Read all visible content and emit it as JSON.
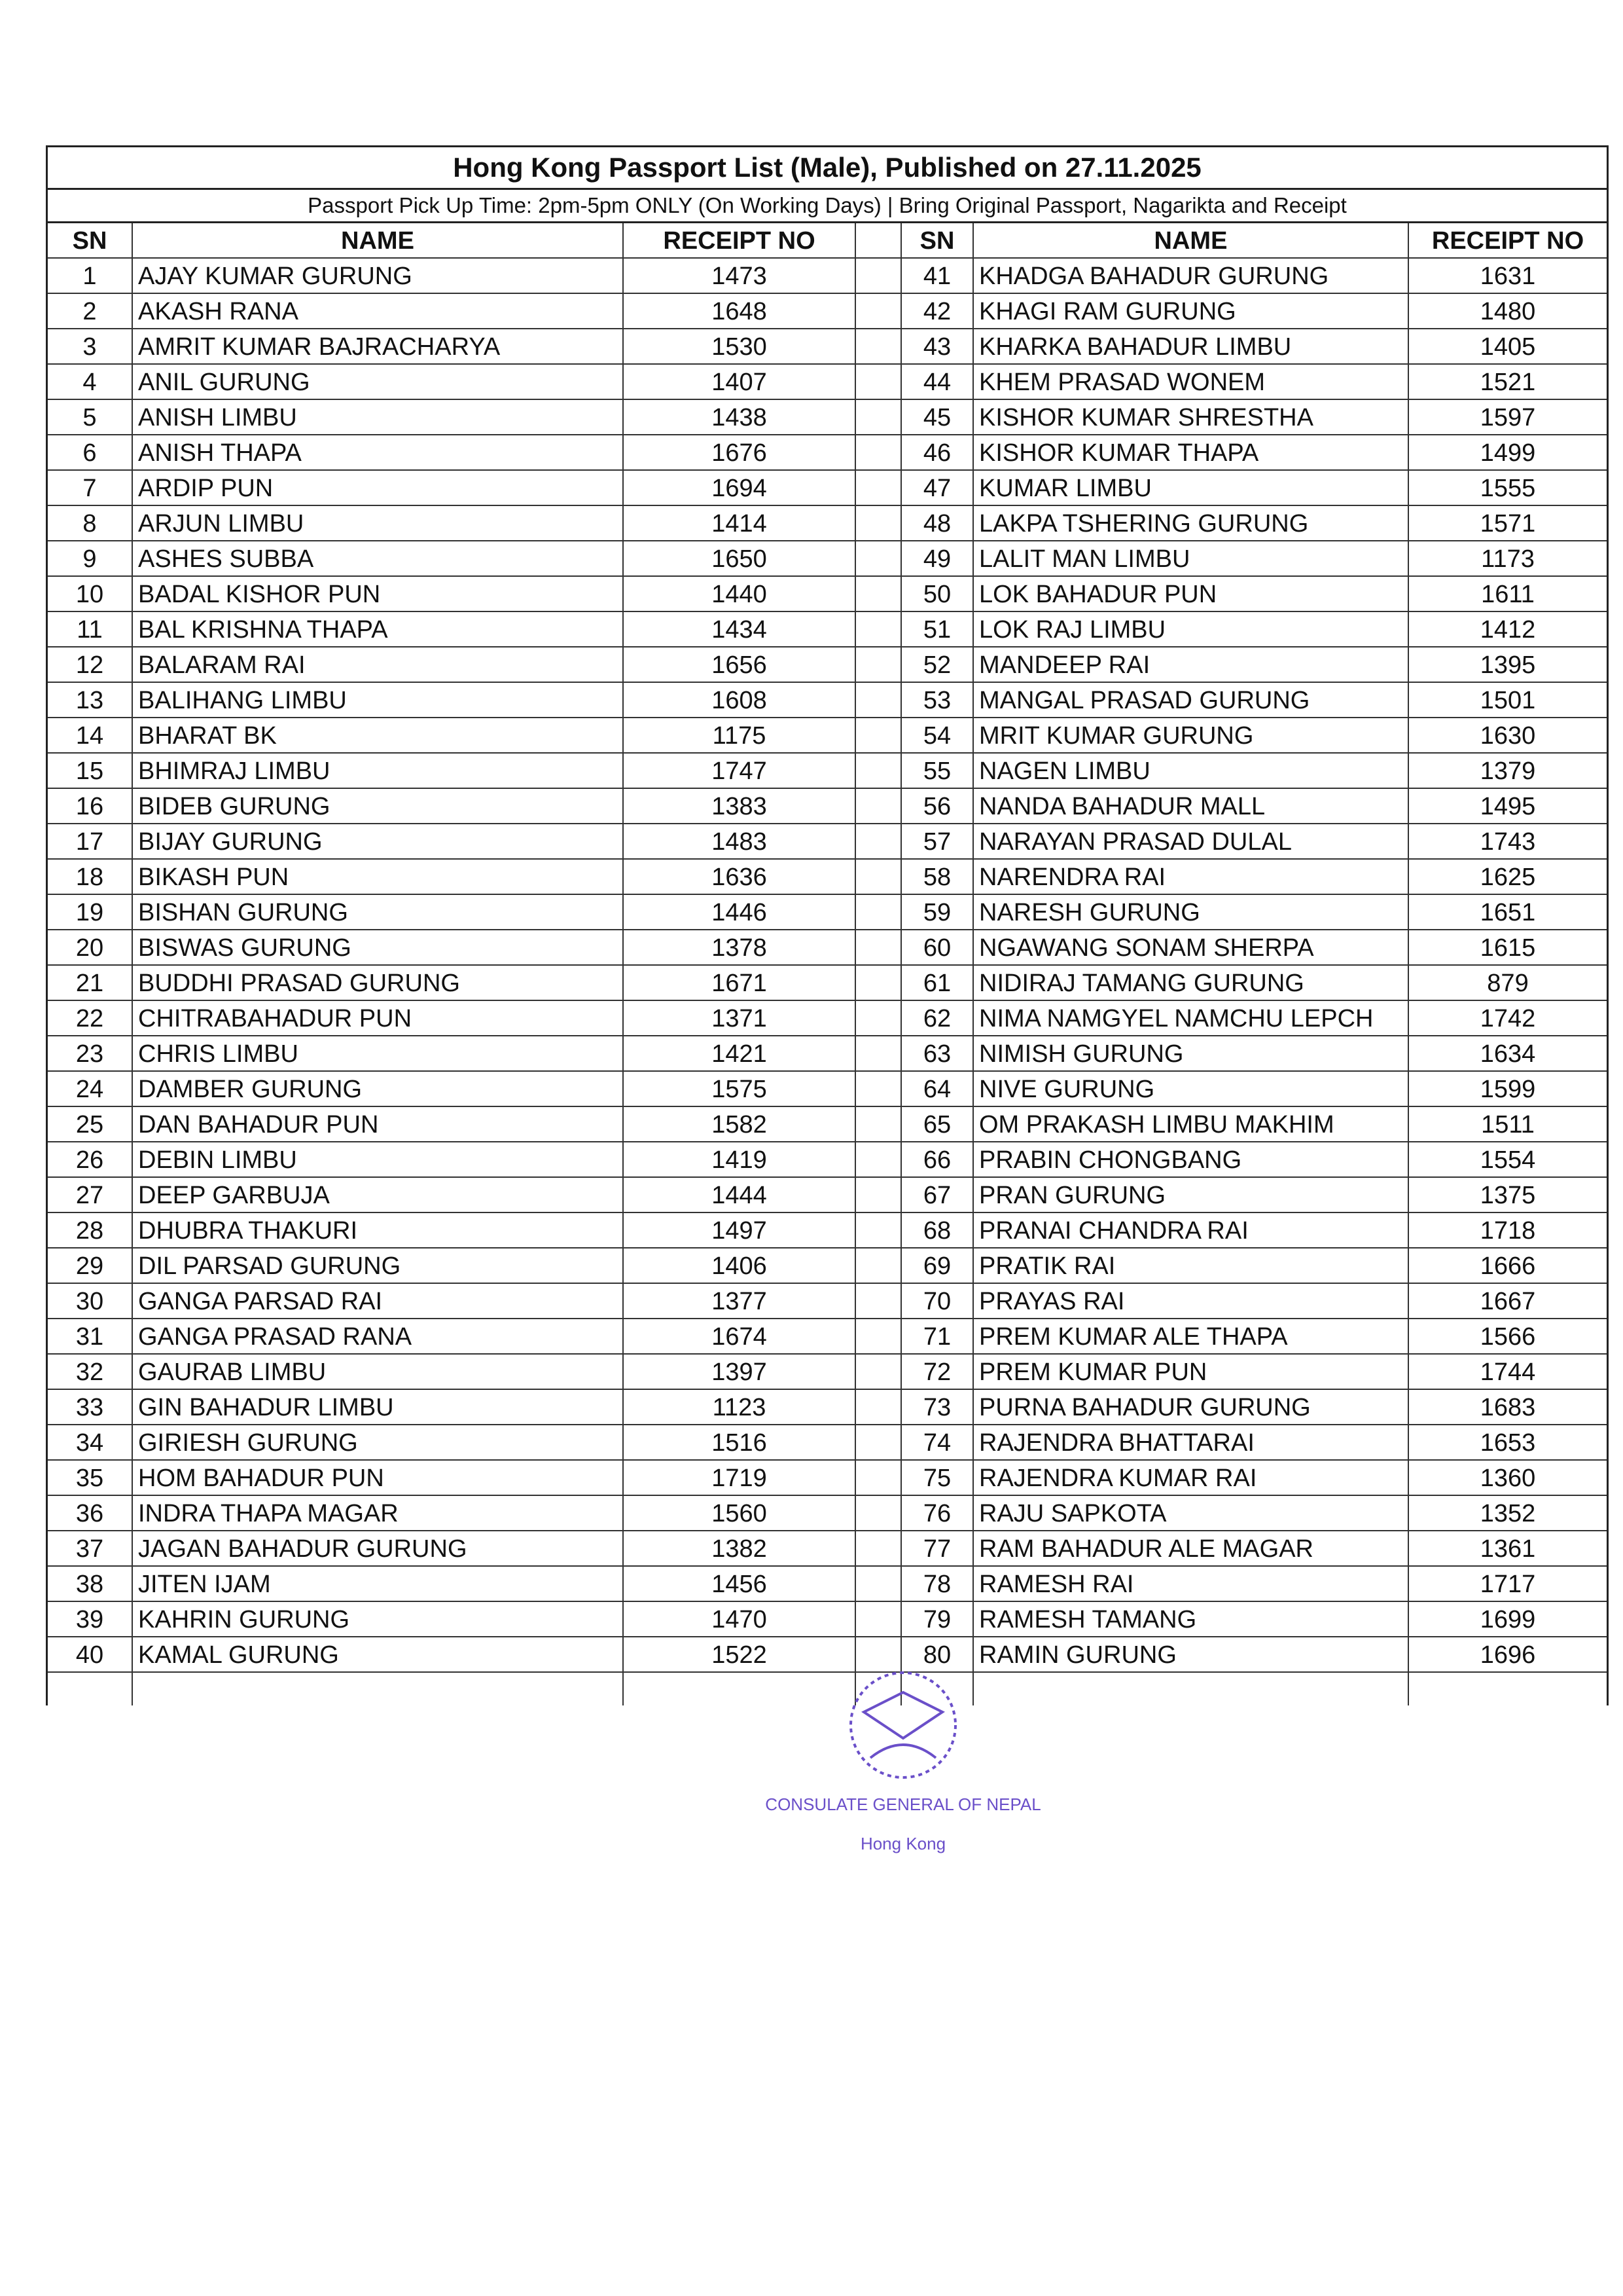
{
  "title": "Hong Kong Passport List (Male), Published on 27.11.2025",
  "subtitle": "Passport Pick Up Time: 2pm-5pm ONLY (On Working Days) | Bring Original Passport, Nagarikta and Receipt",
  "columns": {
    "sn": "SN",
    "name": "NAME",
    "receipt": "RECEIPT NO"
  },
  "left": [
    [
      "1",
      "AJAY KUMAR GURUNG",
      "1473"
    ],
    [
      "2",
      "AKASH RANA",
      "1648"
    ],
    [
      "3",
      "AMRIT KUMAR BAJRACHARYA",
      "1530"
    ],
    [
      "4",
      "ANIL GURUNG",
      "1407"
    ],
    [
      "5",
      "ANISH LIMBU",
      "1438"
    ],
    [
      "6",
      "ANISH THAPA",
      "1676"
    ],
    [
      "7",
      "ARDIP PUN",
      "1694"
    ],
    [
      "8",
      "ARJUN LIMBU",
      "1414"
    ],
    [
      "9",
      "ASHES SUBBA",
      "1650"
    ],
    [
      "10",
      "BADAL KISHOR PUN",
      "1440"
    ],
    [
      "11",
      "BAL KRISHNA THAPA",
      "1434"
    ],
    [
      "12",
      "BALARAM RAI",
      "1656"
    ],
    [
      "13",
      "BALIHANG LIMBU",
      "1608"
    ],
    [
      "14",
      "BHARAT BK",
      "1175"
    ],
    [
      "15",
      "BHIMRAJ LIMBU",
      "1747"
    ],
    [
      "16",
      "BIDEB GURUNG",
      "1383"
    ],
    [
      "17",
      "BIJAY GURUNG",
      "1483"
    ],
    [
      "18",
      "BIKASH PUN",
      "1636"
    ],
    [
      "19",
      "BISHAN GURUNG",
      "1446"
    ],
    [
      "20",
      "BISWAS GURUNG",
      "1378"
    ],
    [
      "21",
      "BUDDHI PRASAD GURUNG",
      "1671"
    ],
    [
      "22",
      "CHITRABAHADUR PUN",
      "1371"
    ],
    [
      "23",
      "CHRIS LIMBU",
      "1421"
    ],
    [
      "24",
      "DAMBER GURUNG",
      "1575"
    ],
    [
      "25",
      "DAN BAHADUR PUN",
      "1582"
    ],
    [
      "26",
      "DEBIN LIMBU",
      "1419"
    ],
    [
      "27",
      "DEEP GARBUJA",
      "1444"
    ],
    [
      "28",
      "DHUBRA THAKURI",
      "1497"
    ],
    [
      "29",
      "DIL PARSAD GURUNG",
      "1406"
    ],
    [
      "30",
      "GANGA PARSAD RAI",
      "1377"
    ],
    [
      "31",
      "GANGA PRASAD RANA",
      "1674"
    ],
    [
      "32",
      "GAURAB LIMBU",
      "1397"
    ],
    [
      "33",
      "GIN BAHADUR LIMBU",
      "1123"
    ],
    [
      "34",
      "GIRIESH GURUNG",
      "1516"
    ],
    [
      "35",
      "HOM BAHADUR PUN",
      "1719"
    ],
    [
      "36",
      "INDRA THAPA MAGAR",
      "1560"
    ],
    [
      "37",
      "JAGAN BAHADUR GURUNG",
      "1382"
    ],
    [
      "38",
      "JITEN IJAM",
      "1456"
    ],
    [
      "39",
      "KAHRIN GURUNG",
      "1470"
    ],
    [
      "40",
      "KAMAL GURUNG",
      "1522"
    ]
  ],
  "right": [
    [
      "41",
      "KHADGA BAHADUR GURUNG",
      "1631"
    ],
    [
      "42",
      "KHAGI RAM GURUNG",
      "1480"
    ],
    [
      "43",
      "KHARKA BAHADUR LIMBU",
      "1405"
    ],
    [
      "44",
      "KHEM PRASAD WONEM",
      "1521"
    ],
    [
      "45",
      "KISHOR KUMAR SHRESTHA",
      "1597"
    ],
    [
      "46",
      "KISHOR KUMAR THAPA",
      "1499"
    ],
    [
      "47",
      "KUMAR LIMBU",
      "1555"
    ],
    [
      "48",
      "LAKPA TSHERING GURUNG",
      "1571"
    ],
    [
      "49",
      "LALIT MAN LIMBU",
      "1173"
    ],
    [
      "50",
      "LOK BAHADUR PUN",
      "1611"
    ],
    [
      "51",
      "LOK RAJ LIMBU",
      "1412"
    ],
    [
      "52",
      "MANDEEP RAI",
      "1395"
    ],
    [
      "53",
      "MANGAL PRASAD GURUNG",
      "1501"
    ],
    [
      "54",
      "MRIT KUMAR GURUNG",
      "1630"
    ],
    [
      "55",
      "NAGEN LIMBU",
      "1379"
    ],
    [
      "56",
      "NANDA BAHADUR MALL",
      "1495"
    ],
    [
      "57",
      "NARAYAN PRASAD DULAL",
      "1743"
    ],
    [
      "58",
      "NARENDRA RAI",
      "1625"
    ],
    [
      "59",
      "NARESH GURUNG",
      "1651"
    ],
    [
      "60",
      "NGAWANG SONAM SHERPA",
      "1615"
    ],
    [
      "61",
      "NIDIRAJ TAMANG GURUNG",
      "879"
    ],
    [
      "62",
      "NIMA NAMGYEL NAMCHU LEPCH",
      "1742"
    ],
    [
      "63",
      "NIMISH GURUNG",
      "1634"
    ],
    [
      "64",
      "NIVE GURUNG",
      "1599"
    ],
    [
      "65",
      "OM PRAKASH LIMBU MAKHIM",
      "1511"
    ],
    [
      "66",
      "PRABIN CHONGBANG",
      "1554"
    ],
    [
      "67",
      "PRAN GURUNG",
      "1375"
    ],
    [
      "68",
      "PRANAI CHANDRA RAI",
      "1718"
    ],
    [
      "69",
      "PRATIK RAI",
      "1666"
    ],
    [
      "70",
      "PRAYAS RAI",
      "1667"
    ],
    [
      "71",
      "PREM KUMAR ALE THAPA",
      "1566"
    ],
    [
      "72",
      "PREM KUMAR PUN",
      "1744"
    ],
    [
      "73",
      "PURNA BAHADUR GURUNG",
      "1683"
    ],
    [
      "74",
      "RAJENDRA BHATTARAI",
      "1653"
    ],
    [
      "75",
      "RAJENDRA KUMAR RAI",
      "1360"
    ],
    [
      "76",
      "RAJU SAPKOTA",
      "1352"
    ],
    [
      "77",
      "RAM BAHADUR ALE MAGAR",
      "1361"
    ],
    [
      "78",
      "RAMESH RAI",
      "1717"
    ],
    [
      "79",
      "RAMESH TAMANG",
      "1699"
    ],
    [
      "80",
      "RAMIN GURUNG",
      "1696"
    ]
  ],
  "stamp": {
    "text": "CONSULATE GENERAL OF NEPAL",
    "city": "Hong Kong",
    "color": "#6a4fc9"
  }
}
